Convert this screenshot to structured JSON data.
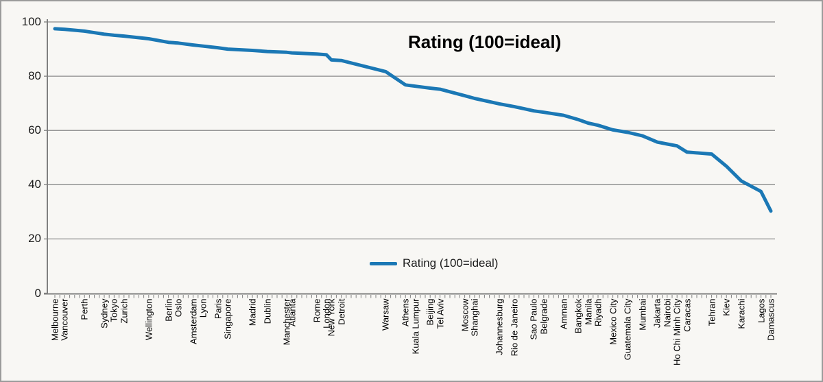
{
  "window": {
    "background": "#f8f7f4",
    "border_color": "#9b9b9b"
  },
  "chart_data": {
    "type": "line",
    "title": "Rating (100=ideal)",
    "legend_label": "Rating (100=ideal)",
    "legend_position": "bottom-center-inside",
    "xlabel": "",
    "ylabel": "",
    "ylim": [
      0,
      100
    ],
    "y_ticks": [
      0,
      20,
      40,
      60,
      80,
      100
    ],
    "grid": "horizontal",
    "x_total_points": 146,
    "colors": {
      "line": "#1b78b5",
      "grid": "#8a8a8a",
      "axis": "#808080",
      "background": "#f8f7f4",
      "title_text": "#000000",
      "tick_text": "#1a1a1a"
    },
    "series": [
      {
        "name": "Rating (100=ideal)",
        "points": [
          {
            "city": "Melbourne",
            "index": 0,
            "value": 97.5
          },
          {
            "city": "Vancouver",
            "index": 2,
            "value": 97.3
          },
          {
            "city": "Perth",
            "index": 6,
            "value": 96.6
          },
          {
            "city": "Sydney",
            "index": 10,
            "value": 95.5
          },
          {
            "city": "Tokyo",
            "index": 12,
            "value": 95.1
          },
          {
            "city": "Zurich",
            "index": 14,
            "value": 94.8
          },
          {
            "city": "Wellington",
            "index": 19,
            "value": 93.8
          },
          {
            "city": "Berlin",
            "index": 23,
            "value": 92.5
          },
          {
            "city": "Oslo",
            "index": 25,
            "value": 92.2
          },
          {
            "city": "Amsterdam",
            "index": 28,
            "value": 91.5
          },
          {
            "city": "Lyon",
            "index": 30,
            "value": 91.1
          },
          {
            "city": "Paris",
            "index": 33,
            "value": 90.5
          },
          {
            "city": "Singapore",
            "index": 35,
            "value": 90.0
          },
          {
            "city": "Madrid",
            "index": 40,
            "value": 89.5
          },
          {
            "city": "Dublin",
            "index": 43,
            "value": 89.1
          },
          {
            "city": "Manchester",
            "index": 47,
            "value": 88.8
          },
          {
            "city": "Atlanta",
            "index": 48,
            "value": 88.6
          },
          {
            "city": "Rome",
            "index": 53,
            "value": 88.2
          },
          {
            "city": "London",
            "index": 55,
            "value": 87.9
          },
          {
            "city": "New York",
            "index": 56,
            "value": 86.0
          },
          {
            "city": "Detroit",
            "index": 58,
            "value": 85.8
          },
          {
            "city": "Warsaw",
            "index": 67,
            "value": 81.7
          },
          {
            "city": "Athens",
            "index": 71,
            "value": 76.8
          },
          {
            "city": "Kuala Lumpur",
            "index": 73,
            "value": 76.3
          },
          {
            "city": "Beijing",
            "index": 76,
            "value": 75.6
          },
          {
            "city": "Tel Aviv",
            "index": 78,
            "value": 75.2
          },
          {
            "city": "Moscow",
            "index": 83,
            "value": 72.8
          },
          {
            "city": "Shanghai",
            "index": 85,
            "value": 71.8
          },
          {
            "city": "Johannesburg",
            "index": 90,
            "value": 69.8
          },
          {
            "city": "Rio de Janeiro",
            "index": 93,
            "value": 68.8
          },
          {
            "city": "Sao Paulo",
            "index": 97,
            "value": 67.2
          },
          {
            "city": "Belgrade",
            "index": 99,
            "value": 66.7
          },
          {
            "city": "Amman",
            "index": 103,
            "value": 65.6
          },
          {
            "city": "Bangkok",
            "index": 106,
            "value": 64.0
          },
          {
            "city": "Manila",
            "index": 108,
            "value": 62.7
          },
          {
            "city": "Riyadh",
            "index": 110,
            "value": 61.9
          },
          {
            "city": "Mexico City",
            "index": 113,
            "value": 60.2
          },
          {
            "city": "Guatemala City",
            "index": 116,
            "value": 59.3
          },
          {
            "city": "Mumbai",
            "index": 119,
            "value": 58.0
          },
          {
            "city": "Jakarta",
            "index": 122,
            "value": 55.7
          },
          {
            "city": "Nairobi",
            "index": 124,
            "value": 55.0
          },
          {
            "city": "Ho Chi Minh City",
            "index": 126,
            "value": 54.3
          },
          {
            "city": "Caracas",
            "index": 128,
            "value": 52.0
          },
          {
            "city": "Tehran",
            "index": 133,
            "value": 51.3
          },
          {
            "city": "Kiev",
            "index": 136,
            "value": 46.8
          },
          {
            "city": "Karachi",
            "index": 139,
            "value": 41.4
          },
          {
            "city": "Lagos",
            "index": 143,
            "value": 37.5
          },
          {
            "city": "Damascus",
            "index": 145,
            "value": 30.3
          }
        ]
      }
    ]
  }
}
